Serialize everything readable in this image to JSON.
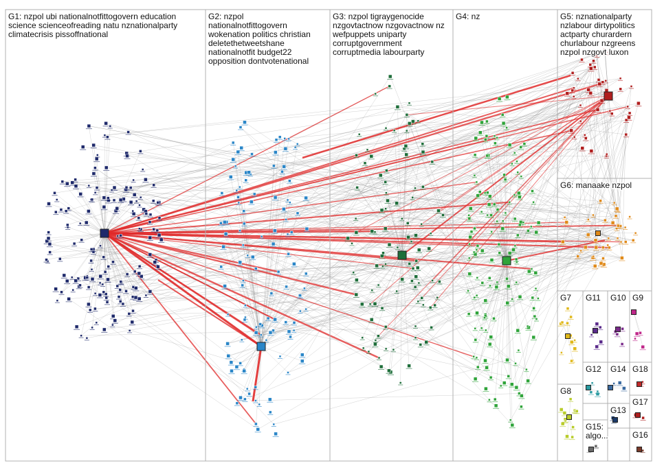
{
  "graph": {
    "background": "#ffffff",
    "box_border_color": "#b0b0b0",
    "edge_gray": "#8a8a8a",
    "edge_red": "#e02a2a",
    "groups": [
      {
        "id": "G1",
        "lines": [
          "G1: nzpol ubi nationalnotfittogovern education",
          "science scienceofreading natu nznationalparty",
          "climatecrisis pissoffnational"
        ],
        "node_color": "#1f2a6b",
        "node_count": 170
      },
      {
        "id": "G2",
        "lines": [
          "G2: nzpol",
          "nationalnotfittogovern",
          "wokenation politics christian",
          "deletethetweetshane",
          "nationalnotfit budget22",
          "opposition dontvotenational"
        ],
        "node_color": "#2a86c8",
        "node_count": 120
      },
      {
        "id": "G3",
        "lines": [
          "G3: nzpol tigraygenocide",
          "nzgovtactnow nzgovactnow nz",
          "wefpuppets uniparty",
          "corruptgovernment",
          "corruptmedia labourparty"
        ],
        "node_color": "#1e6e3a",
        "node_count": 110
      },
      {
        "id": "G4",
        "lines": [
          "G4: nz"
        ],
        "node_color": "#2fa43a",
        "node_count": 150
      },
      {
        "id": "G5",
        "lines": [
          "G5: nznationalparty",
          "nzlabour dirtypolitics",
          "actparty churardern",
          "churlabour nzgreens",
          "nzpol nzgovt luxon"
        ],
        "node_color": "#b01e1e",
        "node_count": 45
      },
      {
        "id": "G6",
        "lines": [
          "G6: manaake nzpol"
        ],
        "node_color": "#e08a1a",
        "node_count": 40
      },
      {
        "id": "G7",
        "lines": [
          "G7"
        ],
        "node_color": "#e0b81a",
        "node_count": 12
      },
      {
        "id": "G8",
        "lines": [
          "G8"
        ],
        "node_color": "#b8cc2a",
        "node_count": 12
      },
      {
        "id": "G9",
        "lines": [
          "G9"
        ],
        "node_color": "#c0288a",
        "node_count": 4
      },
      {
        "id": "G10",
        "lines": [
          "G10"
        ],
        "node_color": "#7a2a8a",
        "node_count": 4
      },
      {
        "id": "G11",
        "lines": [
          "G11"
        ],
        "node_color": "#5a2a8a",
        "node_count": 5
      },
      {
        "id": "G12",
        "lines": [
          "G12"
        ],
        "node_color": "#2a9aa0",
        "node_count": 4
      },
      {
        "id": "G13",
        "lines": [
          "G13"
        ],
        "node_color": "#1a3a6a",
        "node_count": 2
      },
      {
        "id": "G14",
        "lines": [
          "G14"
        ],
        "node_color": "#3a6aa0",
        "node_count": 3
      },
      {
        "id": "G15",
        "lines": [
          "G15:",
          "algo..."
        ],
        "node_color": "#6a6a6a",
        "node_count": 3
      },
      {
        "id": "G16",
        "lines": [
          "G16"
        ],
        "node_color": "#7a3a2a",
        "node_count": 2
      },
      {
        "id": "G17",
        "lines": [
          "G17"
        ],
        "node_color": "#b01e1e",
        "node_count": 2
      },
      {
        "id": "G18",
        "lines": [
          "G18"
        ],
        "node_color": "#c02a2a",
        "node_count": 2
      }
    ]
  }
}
